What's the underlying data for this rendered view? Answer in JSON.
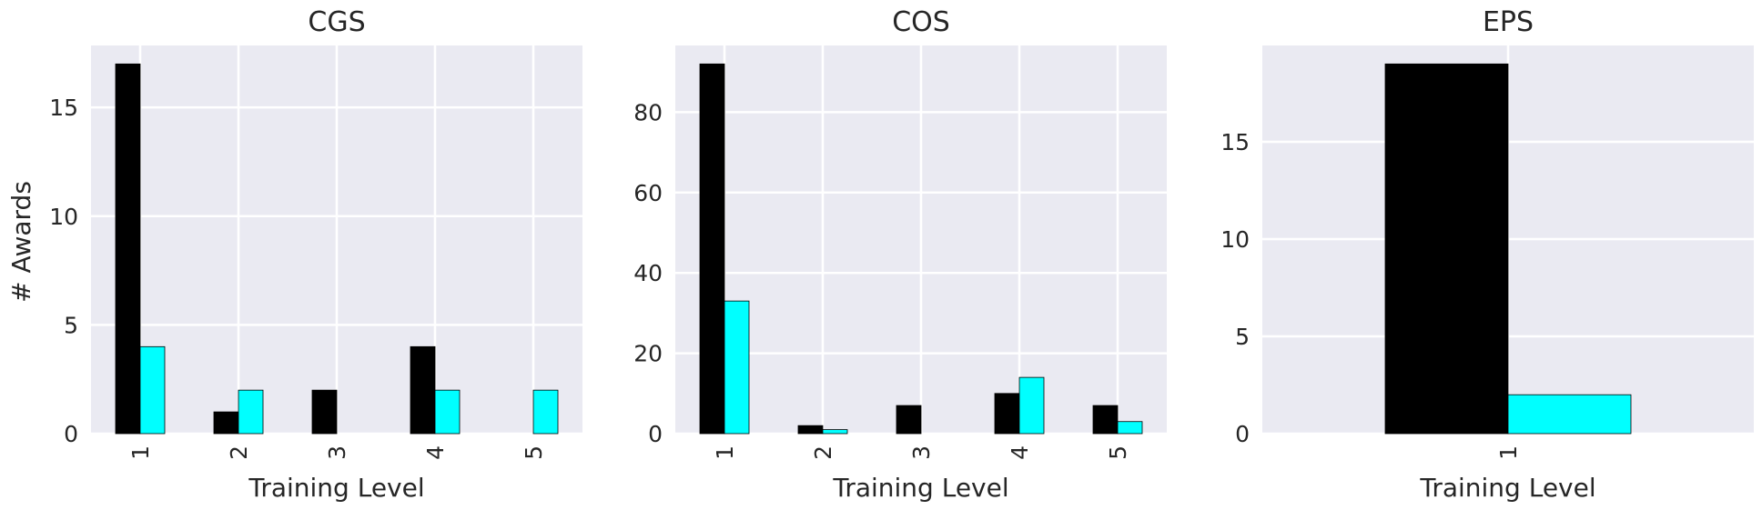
{
  "figure": {
    "ylabel": "# Awards",
    "bar_colors": [
      "#000000",
      "#00ffff"
    ],
    "axes_background": "#eaeaf2",
    "grid_color": "#ffffff"
  },
  "chart_data": [
    {
      "type": "bar",
      "title": "CGS",
      "xlabel": "Training Level",
      "ylabel": "# Awards",
      "categories": [
        "1",
        "2",
        "3",
        "4",
        "5"
      ],
      "series": [
        {
          "values": [
            17,
            1,
            2,
            4,
            0
          ],
          "color": "#000000"
        },
        {
          "values": [
            4,
            2,
            0,
            2,
            2
          ],
          "color": "#00ffff"
        }
      ],
      "ylim": [
        0,
        17.85
      ],
      "yticks": [
        0,
        5,
        10,
        15
      ],
      "grid": true
    },
    {
      "type": "bar",
      "title": "COS",
      "xlabel": "Training Level",
      "ylabel": "",
      "categories": [
        "1",
        "2",
        "3",
        "4",
        "5"
      ],
      "series": [
        {
          "values": [
            92,
            2,
            7,
            10,
            7
          ],
          "color": "#000000"
        },
        {
          "values": [
            33,
            1,
            0,
            14,
            3
          ],
          "color": "#00ffff"
        }
      ],
      "ylim": [
        0,
        96.6
      ],
      "yticks": [
        0,
        20,
        40,
        60,
        80
      ],
      "grid": true
    },
    {
      "type": "bar",
      "title": "EPS",
      "xlabel": "Training Level",
      "ylabel": "",
      "categories": [
        "1"
      ],
      "series": [
        {
          "values": [
            19
          ],
          "color": "#000000"
        },
        {
          "values": [
            2
          ],
          "color": "#00ffff"
        }
      ],
      "ylim": [
        0,
        19.95
      ],
      "yticks": [
        0,
        5,
        10,
        15
      ],
      "grid": true
    }
  ]
}
